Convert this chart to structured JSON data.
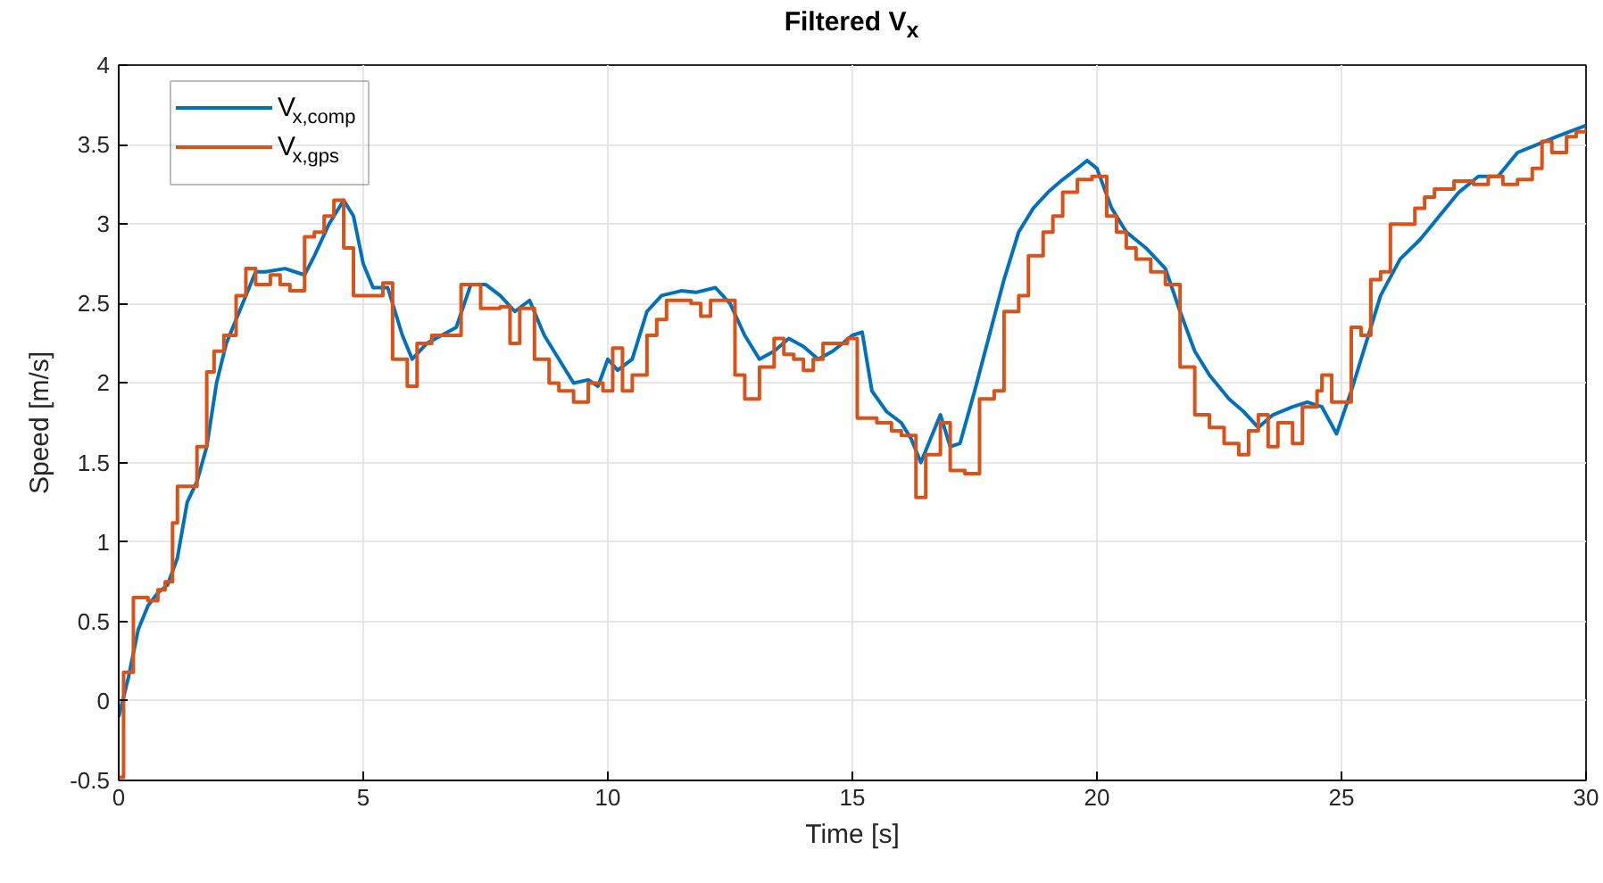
{
  "chart_data": {
    "type": "line",
    "title": "Filtered V$_{x}$",
    "xlabel": "Time [s]",
    "ylabel": "Speed [m/s]",
    "xlim": [
      0,
      30
    ],
    "ylim": [
      -0.5,
      4
    ],
    "xticks": [
      0,
      5,
      10,
      15,
      20,
      25,
      30
    ],
    "yticks": [
      -0.5,
      0,
      0.5,
      1,
      1.5,
      2,
      2.5,
      3,
      3.5,
      4
    ],
    "grid": true,
    "legend": "top left",
    "series": [
      {
        "name": "V$_{x,comp}$",
        "color": "#0072bd",
        "x": [
          0,
          0.2,
          0.4,
          0.6,
          0.8,
          1.0,
          1.2,
          1.4,
          1.6,
          1.8,
          2.0,
          2.2,
          2.4,
          2.6,
          2.8,
          3.0,
          3.4,
          3.8,
          4.0,
          4.3,
          4.6,
          4.8,
          5.0,
          5.2,
          5.5,
          5.8,
          6.0,
          6.3,
          6.6,
          6.9,
          7.2,
          7.5,
          7.8,
          8.1,
          8.4,
          8.7,
          9.0,
          9.3,
          9.6,
          9.8,
          10.0,
          10.2,
          10.5,
          10.8,
          11.1,
          11.5,
          11.8,
          12.2,
          12.5,
          12.8,
          13.1,
          13.4,
          13.7,
          14.0,
          14.3,
          14.6,
          15.0,
          15.2,
          15.4,
          15.7,
          16.0,
          16.2,
          16.4,
          16.6,
          16.8,
          17.0,
          17.2,
          17.5,
          17.8,
          18.1,
          18.4,
          18.7,
          19.0,
          19.3,
          19.6,
          19.8,
          20.0,
          20.3,
          20.6,
          21.0,
          21.4,
          21.7,
          22.0,
          22.3,
          22.7,
          23.0,
          23.3,
          23.6,
          24.0,
          24.3,
          24.6,
          24.9,
          25.2,
          25.5,
          25.8,
          26.2,
          26.6,
          27.0,
          27.4,
          27.8,
          28.2,
          28.6,
          29.0,
          29.4,
          30.0
        ],
        "values": [
          -0.1,
          0.15,
          0.45,
          0.6,
          0.68,
          0.73,
          0.9,
          1.25,
          1.38,
          1.6,
          2.0,
          2.25,
          2.4,
          2.55,
          2.7,
          2.7,
          2.72,
          2.68,
          2.8,
          3.0,
          3.15,
          3.05,
          2.75,
          2.6,
          2.6,
          2.3,
          2.15,
          2.25,
          2.3,
          2.35,
          2.62,
          2.62,
          2.55,
          2.45,
          2.52,
          2.3,
          2.15,
          2.0,
          2.02,
          1.98,
          2.15,
          2.08,
          2.15,
          2.45,
          2.55,
          2.58,
          2.57,
          2.6,
          2.5,
          2.3,
          2.15,
          2.2,
          2.28,
          2.23,
          2.15,
          2.2,
          2.3,
          2.32,
          1.95,
          1.82,
          1.75,
          1.65,
          1.5,
          1.65,
          1.8,
          1.6,
          1.62,
          1.95,
          2.3,
          2.65,
          2.95,
          3.1,
          3.2,
          3.28,
          3.35,
          3.4,
          3.35,
          3.1,
          2.95,
          2.85,
          2.72,
          2.45,
          2.2,
          2.05,
          1.9,
          1.82,
          1.72,
          1.8,
          1.85,
          1.88,
          1.85,
          1.68,
          1.95,
          2.25,
          2.55,
          2.78,
          2.9,
          3.05,
          3.2,
          3.3,
          3.3,
          3.45,
          3.5,
          3.55,
          3.62
        ]
      },
      {
        "name": "V$_{x,gps}$",
        "color": "#d95319",
        "type": "step",
        "x": [
          0,
          0.1,
          0.3,
          0.6,
          0.8,
          0.95,
          1.1,
          1.2,
          1.5,
          1.6,
          1.8,
          1.95,
          2.15,
          2.4,
          2.6,
          2.8,
          3.1,
          3.3,
          3.5,
          3.8,
          4.0,
          4.2,
          4.4,
          4.6,
          4.8,
          5.2,
          5.4,
          5.6,
          5.9,
          6.1,
          6.4,
          7.0,
          7.4,
          7.8,
          8.0,
          8.2,
          8.5,
          8.8,
          9.0,
          9.3,
          9.6,
          9.9,
          10.1,
          10.3,
          10.5,
          10.8,
          11.0,
          11.2,
          11.7,
          11.9,
          12.1,
          12.6,
          12.8,
          13.1,
          13.4,
          13.6,
          13.8,
          14.0,
          14.2,
          14.4,
          14.9,
          15.1,
          15.5,
          15.8,
          16.0,
          16.3,
          16.5,
          16.8,
          17.0,
          17.3,
          17.6,
          17.9,
          18.1,
          18.4,
          18.6,
          18.9,
          19.1,
          19.3,
          19.6,
          19.9,
          20.2,
          20.4,
          20.6,
          20.8,
          21.1,
          21.4,
          21.7,
          22.0,
          22.3,
          22.6,
          22.9,
          23.1,
          23.3,
          23.5,
          23.7,
          24.0,
          24.2,
          24.5,
          24.6,
          24.8,
          25.2,
          25.4,
          25.6,
          25.8,
          26.0,
          26.3,
          26.5,
          26.7,
          26.9,
          27.3,
          27.7,
          28.0,
          28.3,
          28.6,
          28.9,
          29.1,
          29.3,
          29.6,
          29.8,
          30
        ],
        "values": [
          -0.48,
          0.18,
          0.65,
          0.63,
          0.7,
          0.75,
          1.12,
          1.35,
          1.35,
          1.6,
          2.07,
          2.2,
          2.3,
          2.55,
          2.72,
          2.62,
          2.68,
          2.62,
          2.58,
          2.92,
          2.95,
          3.05,
          3.15,
          2.85,
          2.55,
          2.55,
          2.63,
          2.15,
          1.98,
          2.25,
          2.3,
          2.62,
          2.47,
          2.48,
          2.25,
          2.47,
          2.15,
          2.0,
          1.95,
          1.88,
          2.0,
          1.95,
          2.22,
          1.95,
          2.05,
          2.3,
          2.4,
          2.52,
          2.5,
          2.42,
          2.52,
          2.05,
          1.9,
          2.1,
          2.28,
          2.18,
          2.15,
          2.08,
          2.15,
          2.25,
          2.28,
          1.78,
          1.75,
          1.7,
          1.67,
          1.28,
          1.55,
          1.75,
          1.45,
          1.43,
          1.9,
          1.95,
          2.45,
          2.55,
          2.8,
          2.95,
          3.05,
          3.2,
          3.28,
          3.3,
          3.05,
          2.95,
          2.85,
          2.78,
          2.7,
          2.62,
          2.1,
          1.8,
          1.72,
          1.62,
          1.55,
          1.7,
          1.8,
          1.6,
          1.75,
          1.62,
          1.85,
          1.95,
          2.05,
          1.88,
          2.35,
          2.3,
          2.65,
          2.7,
          3.0,
          3.0,
          3.1,
          3.17,
          3.22,
          3.27,
          3.25,
          3.3,
          3.25,
          3.28,
          3.35,
          3.52,
          3.45,
          3.55,
          3.58,
          3.6
        ]
      }
    ]
  }
}
